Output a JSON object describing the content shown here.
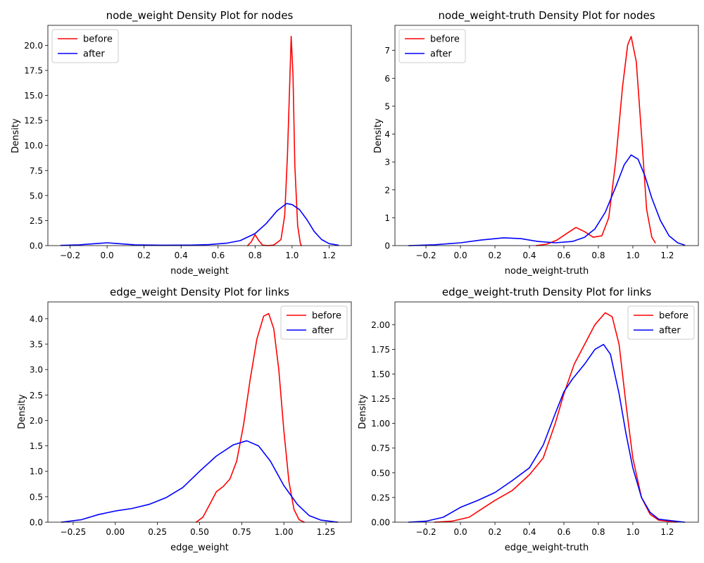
{
  "chart_data": [
    {
      "type": "line",
      "title": "node_weight Density Plot for nodes",
      "xlabel": "node_weight",
      "ylabel": "Density",
      "xlim": [
        -0.32,
        1.32
      ],
      "ylim": [
        0,
        22
      ],
      "xticks": [
        -0.2,
        0.0,
        0.2,
        0.4,
        0.6,
        0.8,
        1.0,
        1.2
      ],
      "xtick_labels": [
        "−0.2",
        "0.0",
        "0.2",
        "0.4",
        "0.6",
        "0.8",
        "1.0",
        "1.2"
      ],
      "yticks": [
        0,
        2.5,
        5,
        7.5,
        10,
        12.5,
        15,
        17.5,
        20
      ],
      "ytick_labels": [
        "0.0",
        "2.5",
        "5.0",
        "7.5",
        "10.0",
        "12.5",
        "15.0",
        "17.5",
        "20.0"
      ],
      "legend_position": "top-left",
      "series": [
        {
          "name": "before",
          "color": "#ff0000",
          "points": [
            [
              0.76,
              0.0
            ],
            [
              0.78,
              0.4
            ],
            [
              0.8,
              1.1
            ],
            [
              0.82,
              0.5
            ],
            [
              0.84,
              0.05
            ],
            [
              0.87,
              0.0
            ],
            [
              0.9,
              0.05
            ],
            [
              0.94,
              0.6
            ],
            [
              0.96,
              3.0
            ],
            [
              0.975,
              9.0
            ],
            [
              0.985,
              15.0
            ],
            [
              0.995,
              20.9
            ],
            [
              1.005,
              17.0
            ],
            [
              1.015,
              8.0
            ],
            [
              1.03,
              2.0
            ],
            [
              1.045,
              0.2
            ],
            [
              1.05,
              0.0
            ]
          ]
        },
        {
          "name": "after",
          "color": "#0000ff",
          "points": [
            [
              -0.25,
              0.02
            ],
            [
              -0.15,
              0.08
            ],
            [
              -0.05,
              0.22
            ],
            [
              0.0,
              0.28
            ],
            [
              0.05,
              0.22
            ],
            [
              0.15,
              0.08
            ],
            [
              0.3,
              0.04
            ],
            [
              0.45,
              0.05
            ],
            [
              0.55,
              0.1
            ],
            [
              0.65,
              0.25
            ],
            [
              0.72,
              0.5
            ],
            [
              0.8,
              1.2
            ],
            [
              0.86,
              2.2
            ],
            [
              0.92,
              3.5
            ],
            [
              0.97,
              4.2
            ],
            [
              1.0,
              4.1
            ],
            [
              1.04,
              3.6
            ],
            [
              1.08,
              2.6
            ],
            [
              1.12,
              1.4
            ],
            [
              1.16,
              0.6
            ],
            [
              1.2,
              0.2
            ],
            [
              1.25,
              0.04
            ]
          ]
        }
      ]
    },
    {
      "type": "line",
      "title": "node_weight-truth Density Plot for nodes",
      "xlabel": "node_weight-truth",
      "ylabel": "Density",
      "xlim": [
        -0.38,
        1.38
      ],
      "ylim": [
        0,
        7.9
      ],
      "xticks": [
        -0.2,
        0.0,
        0.2,
        0.4,
        0.6,
        0.8,
        1.0,
        1.2
      ],
      "xtick_labels": [
        "−0.2",
        "0.0",
        "0.2",
        "0.4",
        "0.6",
        "0.8",
        "1.0",
        "1.2"
      ],
      "yticks": [
        0,
        1,
        2,
        3,
        4,
        5,
        6,
        7
      ],
      "ytick_labels": [
        "0",
        "1",
        "2",
        "3",
        "4",
        "5",
        "6",
        "7"
      ],
      "legend_position": "top-left",
      "series": [
        {
          "name": "before",
          "color": "#ff0000",
          "points": [
            [
              0.44,
              0.0
            ],
            [
              0.5,
              0.05
            ],
            [
              0.56,
              0.2
            ],
            [
              0.62,
              0.45
            ],
            [
              0.67,
              0.65
            ],
            [
              0.72,
              0.5
            ],
            [
              0.77,
              0.3
            ],
            [
              0.82,
              0.35
            ],
            [
              0.86,
              1.0
            ],
            [
              0.9,
              3.0
            ],
            [
              0.94,
              5.7
            ],
            [
              0.97,
              7.2
            ],
            [
              0.99,
              7.5
            ],
            [
              1.02,
              6.6
            ],
            [
              1.05,
              4.0
            ],
            [
              1.08,
              1.3
            ],
            [
              1.11,
              0.3
            ],
            [
              1.13,
              0.1
            ]
          ]
        },
        {
          "name": "after",
          "color": "#0000ff",
          "points": [
            [
              -0.3,
              0.0
            ],
            [
              -0.15,
              0.03
            ],
            [
              0.0,
              0.1
            ],
            [
              0.12,
              0.2
            ],
            [
              0.25,
              0.28
            ],
            [
              0.35,
              0.25
            ],
            [
              0.45,
              0.15
            ],
            [
              0.55,
              0.1
            ],
            [
              0.65,
              0.15
            ],
            [
              0.72,
              0.3
            ],
            [
              0.78,
              0.6
            ],
            [
              0.84,
              1.2
            ],
            [
              0.9,
              2.1
            ],
            [
              0.95,
              2.9
            ],
            [
              0.99,
              3.25
            ],
            [
              1.03,
              3.1
            ],
            [
              1.07,
              2.5
            ],
            [
              1.11,
              1.7
            ],
            [
              1.16,
              0.9
            ],
            [
              1.21,
              0.35
            ],
            [
              1.26,
              0.1
            ],
            [
              1.3,
              0.02
            ]
          ]
        }
      ]
    },
    {
      "type": "line",
      "title": "edge_weight Density Plot for links",
      "xlabel": "edge_weight",
      "ylabel": "Density",
      "xlim": [
        -0.4,
        1.4
      ],
      "ylim": [
        0,
        4.33
      ],
      "xticks": [
        -0.25,
        0.0,
        0.25,
        0.5,
        0.75,
        1.0,
        1.25
      ],
      "xtick_labels": [
        "−0.25",
        "0.00",
        "0.25",
        "0.50",
        "0.75",
        "1.00",
        "1.25"
      ],
      "yticks": [
        0,
        0.5,
        1,
        1.5,
        2,
        2.5,
        3,
        3.5,
        4
      ],
      "ytick_labels": [
        "0.0",
        "0.5",
        "1.0",
        "1.5",
        "2.0",
        "2.5",
        "3.0",
        "3.5",
        "4.0"
      ],
      "legend_position": "top-right",
      "series": [
        {
          "name": "before",
          "color": "#ff0000",
          "points": [
            [
              0.48,
              0.0
            ],
            [
              0.52,
              0.1
            ],
            [
              0.56,
              0.35
            ],
            [
              0.6,
              0.6
            ],
            [
              0.64,
              0.7
            ],
            [
              0.68,
              0.85
            ],
            [
              0.72,
              1.2
            ],
            [
              0.76,
              1.9
            ],
            [
              0.8,
              2.8
            ],
            [
              0.84,
              3.6
            ],
            [
              0.88,
              4.05
            ],
            [
              0.91,
              4.1
            ],
            [
              0.94,
              3.8
            ],
            [
              0.97,
              3.0
            ],
            [
              1.0,
              1.8
            ],
            [
              1.03,
              0.8
            ],
            [
              1.06,
              0.25
            ],
            [
              1.09,
              0.05
            ],
            [
              1.12,
              0.0
            ]
          ]
        },
        {
          "name": "after",
          "color": "#0000ff",
          "points": [
            [
              -0.32,
              0.0
            ],
            [
              -0.2,
              0.05
            ],
            [
              -0.1,
              0.15
            ],
            [
              0.0,
              0.22
            ],
            [
              0.1,
              0.27
            ],
            [
              0.2,
              0.35
            ],
            [
              0.3,
              0.48
            ],
            [
              0.4,
              0.68
            ],
            [
              0.5,
              1.0
            ],
            [
              0.6,
              1.3
            ],
            [
              0.7,
              1.52
            ],
            [
              0.78,
              1.6
            ],
            [
              0.85,
              1.5
            ],
            [
              0.92,
              1.2
            ],
            [
              1.0,
              0.72
            ],
            [
              1.08,
              0.35
            ],
            [
              1.15,
              0.13
            ],
            [
              1.22,
              0.04
            ],
            [
              1.32,
              0.0
            ]
          ]
        }
      ]
    },
    {
      "type": "line",
      "title": "edge_weight-truth Density Plot for links",
      "xlabel": "edge_weight-truth",
      "ylabel": "Density",
      "xlim": [
        -0.38,
        1.38
      ],
      "ylim": [
        0,
        2.23
      ],
      "xticks": [
        -0.2,
        0.0,
        0.2,
        0.4,
        0.6,
        0.8,
        1.0,
        1.2
      ],
      "xtick_labels": [
        "−0.2",
        "0.0",
        "0.2",
        "0.4",
        "0.6",
        "0.8",
        "1.0",
        "1.2"
      ],
      "yticks": [
        0,
        0.25,
        0.5,
        0.75,
        1.0,
        1.25,
        1.5,
        1.75,
        2.0
      ],
      "ytick_labels": [
        "0.00",
        "0.25",
        "0.50",
        "0.75",
        "1.00",
        "1.25",
        "1.50",
        "1.75",
        "2.00"
      ],
      "legend_position": "top-right",
      "series": [
        {
          "name": "before",
          "color": "#ff0000",
          "points": [
            [
              -0.15,
              0.0
            ],
            [
              -0.05,
              0.01
            ],
            [
              0.05,
              0.05
            ],
            [
              0.12,
              0.13
            ],
            [
              0.2,
              0.22
            ],
            [
              0.3,
              0.32
            ],
            [
              0.4,
              0.48
            ],
            [
              0.48,
              0.65
            ],
            [
              0.55,
              1.0
            ],
            [
              0.6,
              1.3
            ],
            [
              0.66,
              1.6
            ],
            [
              0.72,
              1.8
            ],
            [
              0.78,
              2.0
            ],
            [
              0.84,
              2.12
            ],
            [
              0.88,
              2.08
            ],
            [
              0.92,
              1.8
            ],
            [
              0.96,
              1.2
            ],
            [
              1.0,
              0.65
            ],
            [
              1.05,
              0.25
            ],
            [
              1.1,
              0.08
            ],
            [
              1.15,
              0.02
            ],
            [
              1.25,
              0.0
            ]
          ]
        },
        {
          "name": "after",
          "color": "#0000ff",
          "points": [
            [
              -0.3,
              0.0
            ],
            [
              -0.2,
              0.01
            ],
            [
              -0.1,
              0.05
            ],
            [
              0.0,
              0.15
            ],
            [
              0.1,
              0.22
            ],
            [
              0.2,
              0.3
            ],
            [
              0.3,
              0.42
            ],
            [
              0.4,
              0.55
            ],
            [
              0.48,
              0.78
            ],
            [
              0.55,
              1.1
            ],
            [
              0.6,
              1.32
            ],
            [
              0.65,
              1.45
            ],
            [
              0.72,
              1.6
            ],
            [
              0.78,
              1.75
            ],
            [
              0.83,
              1.8
            ],
            [
              0.87,
              1.7
            ],
            [
              0.92,
              1.3
            ],
            [
              0.96,
              0.9
            ],
            [
              1.0,
              0.55
            ],
            [
              1.05,
              0.25
            ],
            [
              1.1,
              0.1
            ],
            [
              1.15,
              0.03
            ],
            [
              1.3,
              0.0
            ]
          ]
        }
      ]
    }
  ]
}
